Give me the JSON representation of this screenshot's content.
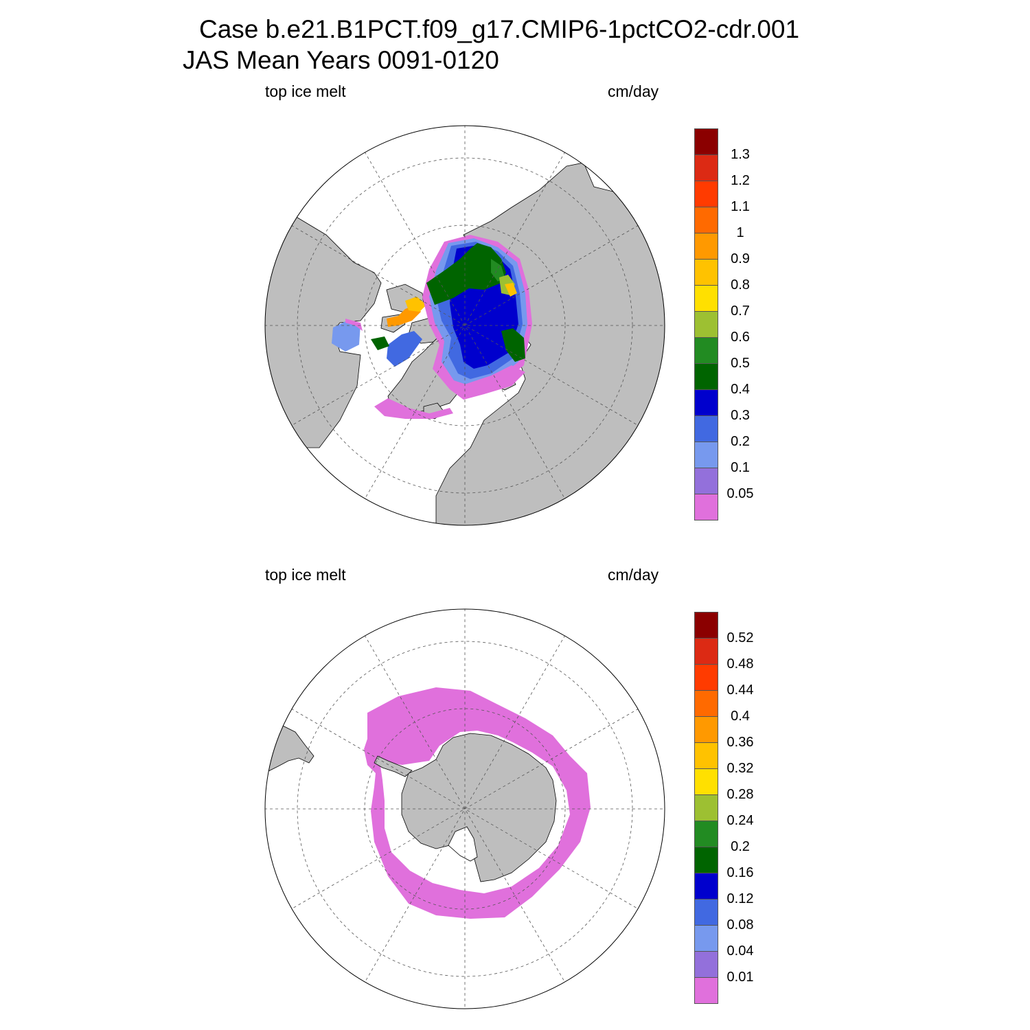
{
  "title": {
    "line1": "Case b.e21.B1PCT.f09_g17.CMIP6-1pctCO2-cdr.001",
    "line2": "JAS Mean   Years 0091-0120"
  },
  "panels": [
    {
      "hemisphere": "north",
      "left_label": "top ice melt",
      "right_label": "cm/day",
      "colorbar": {
        "labels": [
          "1.3",
          "1.2",
          "1.1",
          "1",
          "0.9",
          "0.8",
          "0.7",
          "0.6",
          "0.5",
          "0.4",
          "0.3",
          "0.2",
          "0.1",
          "0.05"
        ]
      }
    },
    {
      "hemisphere": "south",
      "left_label": "top ice melt",
      "right_label": "cm/day",
      "colorbar": {
        "labels": [
          "0.52",
          "0.48",
          "0.44",
          "0.4",
          "0.36",
          "0.32",
          "0.28",
          "0.24",
          "0.2",
          "0.16",
          "0.12",
          "0.08",
          "0.04",
          "0.01"
        ]
      }
    }
  ],
  "colors": {
    "palette_top_to_bottom": [
      "#8b0000",
      "#dc2a14",
      "#ff3b00",
      "#ff6a00",
      "#ff9900",
      "#ffc200",
      "#ffe000",
      "#9dc032",
      "#228b22",
      "#006400",
      "#0000cd",
      "#4169e1",
      "#7799ee",
      "#9370db",
      "#e070dc"
    ],
    "land": "#bebebe",
    "ocean": "#ffffff"
  },
  "chart_data": [
    {
      "type": "heatmap",
      "title": "top ice melt",
      "units": "cm/day",
      "projection": "north polar stereographic",
      "colorbar_levels": [
        0.05,
        0.1,
        0.2,
        0.3,
        0.4,
        0.5,
        0.6,
        0.7,
        0.8,
        0.9,
        1,
        1.1,
        1.2,
        1.3
      ]
    },
    {
      "type": "heatmap",
      "title": "top ice melt",
      "units": "cm/day",
      "projection": "south polar stereographic",
      "colorbar_levels": [
        0.01,
        0.04,
        0.08,
        0.12,
        0.16,
        0.2,
        0.24,
        0.28,
        0.32,
        0.36,
        0.4,
        0.44,
        0.48,
        0.52
      ]
    }
  ]
}
